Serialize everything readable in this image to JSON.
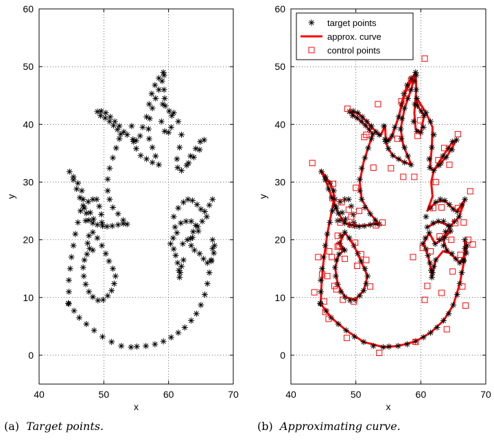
{
  "captions": [
    {
      "label": "(a)",
      "text": "Target points."
    },
    {
      "label": "(b)",
      "text": "Approximating curve."
    }
  ],
  "chart_data": [
    {
      "type": "scatter",
      "xlabel": "x",
      "ylabel": "y",
      "xlim": [
        40,
        70
      ],
      "ylim": [
        -5,
        60
      ],
      "xticks": [
        40,
        50,
        60,
        70
      ],
      "yticks": [
        0,
        10,
        20,
        30,
        40,
        50,
        60
      ],
      "grid": true,
      "series": [
        {
          "marker": "asterisk",
          "color": "#000000",
          "points": "target"
        }
      ]
    },
    {
      "type": "scatter",
      "xlabel": "x",
      "ylabel": "y",
      "xlim": [
        40,
        70
      ],
      "ylim": [
        -5,
        60
      ],
      "xticks": [
        40,
        50,
        60,
        70
      ],
      "yticks": [
        0,
        10,
        20,
        30,
        40,
        50,
        60
      ],
      "grid": true,
      "legend_position": "top",
      "series": [
        {
          "name": "target points",
          "marker": "asterisk",
          "color": "#000000",
          "points": "target"
        },
        {
          "name": "approx. curve",
          "style": "line",
          "color": "#ff0000",
          "points": "target"
        },
        {
          "name": "control points",
          "marker": "square",
          "color": "#ff0000",
          "points": "control"
        }
      ]
    }
  ],
  "target_points": [
    [
      44.5,
      9
    ],
    [
      44.6,
      11
    ],
    [
      44.6,
      13
    ],
    [
      44.8,
      15
    ],
    [
      45.0,
      17
    ],
    [
      45.3,
      19
    ],
    [
      45.6,
      21
    ],
    [
      46.0,
      23
    ],
    [
      46.4,
      25
    ],
    [
      46.8,
      27
    ],
    [
      46.6,
      28.5
    ],
    [
      46.0,
      29.8
    ],
    [
      45.3,
      30.9
    ],
    [
      44.7,
      31.8
    ],
    [
      45.3,
      30.4
    ],
    [
      45.8,
      28.8
    ],
    [
      46.3,
      27.3
    ],
    [
      46.8,
      25.9
    ],
    [
      47.3,
      24.6
    ],
    [
      47.7,
      23.4
    ],
    [
      48.3,
      22.9
    ],
    [
      49.0,
      22.6
    ],
    [
      49.8,
      22.4
    ],
    [
      50.5,
      22.3
    ],
    [
      51.3,
      22.4
    ],
    [
      52.2,
      22.6
    ],
    [
      53.0,
      22.8
    ],
    [
      53.6,
      22.7
    ],
    [
      53.0,
      23.4
    ],
    [
      52.2,
      24.5
    ],
    [
      51.4,
      25.6
    ],
    [
      50.9,
      27.0
    ],
    [
      50.6,
      28.5
    ],
    [
      50.6,
      30.5
    ],
    [
      50.9,
      32.4
    ],
    [
      51.4,
      34.2
    ],
    [
      51.9,
      35.9
    ],
    [
      52.4,
      37.5
    ],
    [
      52.6,
      38.3
    ],
    [
      52.1,
      39.1
    ],
    [
      51.5,
      39.8
    ],
    [
      50.9,
      40.5
    ],
    [
      50.2,
      41.1
    ],
    [
      49.5,
      41.5
    ],
    [
      49.0,
      42.2
    ],
    [
      49.6,
      42.3
    ],
    [
      50.3,
      42.0
    ],
    [
      51.0,
      41.3
    ],
    [
      51.7,
      40.5
    ],
    [
      52.4,
      39.7
    ],
    [
      53.1,
      38.7
    ],
    [
      53.6,
      38.2
    ],
    [
      54.3,
      39.7
    ],
    [
      54.5,
      37.4
    ],
    [
      55.0,
      37.2
    ],
    [
      55.6,
      38.0
    ],
    [
      56.0,
      39.5
    ],
    [
      56.6,
      41.3
    ],
    [
      57.0,
      43.5
    ],
    [
      57.4,
      45.3
    ],
    [
      57.9,
      46.8
    ],
    [
      58.5,
      48.0
    ],
    [
      59.2,
      49.0
    ],
    [
      59.0,
      47.5
    ],
    [
      58.5,
      46.0
    ],
    [
      58.0,
      44.5
    ],
    [
      57.5,
      42.8
    ],
    [
      57.1,
      41.0
    ],
    [
      56.9,
      39.2
    ],
    [
      57.0,
      37.5
    ],
    [
      57.5,
      36.0
    ],
    [
      58.0,
      34.5
    ],
    [
      58.5,
      33.0
    ],
    [
      57.5,
      33.4
    ],
    [
      56.6,
      34.0
    ],
    [
      55.7,
      34.6
    ],
    [
      55.0,
      35.8
    ],
    [
      54.6,
      37.0
    ],
    [
      59.3,
      48.5
    ],
    [
      59.3,
      46.0
    ],
    [
      59.1,
      43.5
    ],
    [
      58.9,
      40.5
    ],
    [
      59.4,
      38.8
    ],
    [
      60.0,
      38.6
    ],
    [
      60.4,
      39.5
    ],
    [
      60.5,
      41.5
    ],
    [
      60.1,
      42.3
    ],
    [
      59.5,
      43.2
    ],
    [
      59.4,
      44.5
    ],
    [
      60.8,
      42.0
    ],
    [
      61.5,
      40.5
    ],
    [
      62.0,
      38.2
    ],
    [
      61.7,
      36.0
    ],
    [
      61.3,
      34.0
    ],
    [
      61.4,
      32.5
    ],
    [
      62.0,
      32.0
    ],
    [
      62.8,
      32.9
    ],
    [
      63.4,
      34.5
    ],
    [
      64.2,
      35.8
    ],
    [
      64.9,
      37.0
    ],
    [
      65.5,
      37.3
    ],
    [
      64.8,
      35.6
    ],
    [
      63.9,
      34.3
    ],
    [
      63.1,
      33.3
    ],
    [
      60.8,
      24.0
    ],
    [
      61.5,
      25.5
    ],
    [
      62.3,
      26.5
    ],
    [
      63.0,
      27.0
    ],
    [
      63.7,
      26.8
    ],
    [
      64.4,
      26.1
    ],
    [
      65.0,
      25.3
    ],
    [
      65.6,
      24.9
    ],
    [
      66.3,
      26.0
    ],
    [
      66.8,
      27.0
    ],
    [
      65.9,
      24.0
    ],
    [
      65.2,
      23.2
    ],
    [
      64.5,
      22.3
    ],
    [
      63.8,
      21.4
    ],
    [
      63.4,
      20.2
    ],
    [
      63.5,
      19.0
    ],
    [
      64.0,
      18.2
    ],
    [
      64.8,
      17.6
    ],
    [
      65.4,
      16.7
    ],
    [
      66.0,
      16.0
    ],
    [
      66.6,
      16.5
    ],
    [
      67.0,
      17.7
    ],
    [
      67.1,
      19.0
    ],
    [
      66.8,
      20.0
    ],
    [
      61.0,
      22.2
    ],
    [
      61.9,
      22.9
    ],
    [
      62.7,
      23.2
    ],
    [
      63.5,
      23.2
    ],
    [
      64.2,
      22.5
    ],
    [
      64.6,
      21.5
    ],
    [
      62.2,
      19.3
    ],
    [
      62.9,
      20.0
    ],
    [
      63.7,
      20.4
    ],
    [
      61.3,
      21.2
    ],
    [
      60.7,
      20.3
    ],
    [
      60.3,
      19.3
    ],
    [
      60.8,
      18.4
    ],
    [
      61.1,
      17.3
    ],
    [
      61.4,
      16.0
    ],
    [
      61.6,
      14.7
    ],
    [
      61.7,
      13.5
    ],
    [
      61.8,
      14.3
    ],
    [
      62.0,
      15.4
    ],
    [
      62.3,
      16.5
    ],
    [
      66.8,
      18.5
    ],
    [
      66.6,
      16.3
    ],
    [
      66.3,
      14.3
    ],
    [
      66.0,
      12.4
    ],
    [
      65.6,
      10.5
    ],
    [
      65.0,
      8.7
    ],
    [
      64.3,
      7.2
    ],
    [
      63.5,
      6.0
    ],
    [
      62.5,
      4.8
    ],
    [
      61.5,
      3.9
    ],
    [
      60.4,
      3.1
    ],
    [
      59.2,
      2.4
    ],
    [
      57.9,
      1.9
    ],
    [
      56.5,
      1.6
    ],
    [
      55.1,
      1.5
    ],
    [
      54.2,
      1.4
    ],
    [
      52.7,
      1.6
    ],
    [
      51.2,
      2.3
    ],
    [
      49.8,
      3.2
    ],
    [
      48.5,
      4.3
    ],
    [
      47.3,
      5.4
    ],
    [
      46.2,
      6.5
    ],
    [
      45.4,
      7.7
    ],
    [
      44.6,
      8.9
    ],
    [
      47.4,
      17.5
    ],
    [
      47.0,
      16.5
    ],
    [
      46.8,
      15.2
    ],
    [
      46.9,
      13.7
    ],
    [
      47.2,
      12.3
    ],
    [
      47.7,
      11.0
    ],
    [
      48.3,
      10.1
    ],
    [
      49.1,
      9.5
    ],
    [
      49.9,
      9.6
    ],
    [
      50.6,
      10.3
    ],
    [
      51.2,
      11.2
    ],
    [
      51.6,
      12.4
    ],
    [
      51.8,
      13.7
    ],
    [
      51.4,
      15.0
    ],
    [
      50.8,
      16.3
    ],
    [
      50.3,
      17.6
    ],
    [
      49.7,
      19.0
    ],
    [
      49.0,
      20.3
    ],
    [
      48.3,
      21.3
    ],
    [
      47.7,
      20.7
    ],
    [
      47.5,
      19.4
    ],
    [
      47.8,
      18.5
    ],
    [
      48.3,
      18.2
    ],
    [
      47.0,
      25.5
    ],
    [
      47.6,
      26.6
    ],
    [
      48.3,
      27.0
    ],
    [
      48.9,
      27.0
    ],
    [
      49.3,
      25.8
    ],
    [
      49.6,
      24.4
    ],
    [
      49.7,
      23.0
    ],
    [
      47.2,
      23.3
    ],
    [
      47.9,
      24.7
    ],
    [
      48.4,
      23.6
    ]
  ],
  "curve_path": [
    [
      44.6,
      9
    ],
    [
      44.7,
      12
    ],
    [
      45.0,
      16
    ],
    [
      45.6,
      21
    ],
    [
      46.3,
      25
    ],
    [
      46.7,
      27.5
    ],
    [
      46.2,
      29.5
    ],
    [
      45.3,
      31
    ],
    [
      44.6,
      32
    ],
    [
      45.4,
      30.2
    ],
    [
      46.3,
      27.3
    ],
    [
      47.3,
      24.6
    ],
    [
      48.3,
      22.9
    ],
    [
      49.8,
      22.4
    ],
    [
      51.3,
      22.4
    ],
    [
      53.0,
      22.8
    ],
    [
      53.6,
      22.7
    ],
    [
      52.2,
      24.5
    ],
    [
      50.9,
      27.0
    ],
    [
      50.6,
      30.0
    ],
    [
      51.2,
      33.5
    ],
    [
      52.0,
      36.3
    ],
    [
      52.6,
      38.3
    ],
    [
      51.5,
      39.8
    ],
    [
      50.2,
      41.1
    ],
    [
      49.0,
      42.2
    ],
    [
      50.3,
      42.0
    ],
    [
      51.7,
      40.5
    ],
    [
      53.1,
      38.7
    ],
    [
      53.8,
      38.0
    ],
    [
      54.5,
      39.8
    ],
    [
      54.6,
      37.4
    ],
    [
      55.3,
      37.3
    ],
    [
      56.0,
      39.5
    ],
    [
      56.6,
      41.3
    ],
    [
      57.2,
      44.3
    ],
    [
      57.9,
      46.8
    ],
    [
      59.2,
      49.0
    ],
    [
      58.5,
      46.0
    ],
    [
      57.5,
      42.8
    ],
    [
      56.9,
      39.2
    ],
    [
      57.3,
      36.3
    ],
    [
      58.0,
      34.5
    ],
    [
      58.5,
      33.0
    ],
    [
      57.0,
      33.7
    ],
    [
      55.7,
      34.6
    ],
    [
      55.0,
      35.8
    ],
    [
      54.6,
      37.0
    ],
    [
      55.6,
      38.0
    ],
    [
      56.6,
      41.3
    ],
    [
      57.6,
      45.5
    ],
    [
      59.2,
      49.0
    ],
    [
      59.3,
      46.0
    ],
    [
      59.0,
      42.0
    ],
    [
      59.2,
      39.2
    ],
    [
      60.0,
      38.6
    ],
    [
      60.5,
      41.5
    ],
    [
      59.5,
      43.2
    ],
    [
      59.4,
      44.5
    ],
    [
      60.8,
      42.0
    ],
    [
      61.8,
      39.5
    ],
    [
      61.7,
      36.0
    ],
    [
      61.4,
      32.5
    ],
    [
      62.0,
      32.0
    ],
    [
      63.4,
      34.5
    ],
    [
      64.9,
      37.0
    ],
    [
      65.5,
      37.3
    ],
    [
      64.0,
      34.4
    ],
    [
      62.8,
      33.0
    ],
    [
      62.0,
      32.0
    ],
    [
      61.6,
      30.0
    ],
    [
      61.8,
      27.5
    ],
    [
      61.0,
      25.0
    ],
    [
      62.3,
      26.5
    ],
    [
      63.7,
      26.8
    ],
    [
      65.0,
      25.3
    ],
    [
      65.6,
      24.9
    ],
    [
      66.8,
      27.0
    ],
    [
      65.9,
      24.0
    ],
    [
      64.5,
      22.3
    ],
    [
      63.4,
      20.2
    ],
    [
      64.0,
      18.2
    ],
    [
      65.4,
      16.7
    ],
    [
      66.0,
      16.0
    ],
    [
      67.0,
      17.7
    ],
    [
      67.1,
      19.0
    ],
    [
      66.8,
      20.0
    ],
    [
      66.7,
      16.5
    ],
    [
      66.0,
      12.4
    ],
    [
      65.0,
      8.7
    ],
    [
      63.5,
      6.0
    ],
    [
      61.5,
      3.9
    ],
    [
      59.2,
      2.4
    ],
    [
      56.5,
      1.6
    ],
    [
      54.2,
      1.4
    ],
    [
      51.2,
      2.3
    ],
    [
      48.5,
      4.3
    ],
    [
      46.2,
      6.5
    ],
    [
      44.6,
      8.9
    ]
  ],
  "curve_path_2": [
    [
      61.0,
      22.2
    ],
    [
      62.7,
      23.2
    ],
    [
      64.2,
      22.5
    ],
    [
      64.6,
      21.5
    ],
    [
      63.7,
      20.4
    ],
    [
      62.2,
      19.3
    ],
    [
      61.3,
      21.2
    ],
    [
      60.4,
      19.3
    ],
    [
      61.1,
      17.3
    ],
    [
      61.6,
      14.7
    ],
    [
      61.7,
      13.5
    ],
    [
      62.3,
      16.5
    ],
    [
      63.4,
      18.0
    ],
    [
      64.8,
      17.6
    ]
  ],
  "curve_path_3": [
    [
      47.4,
      17.5
    ],
    [
      46.8,
      15.2
    ],
    [
      47.2,
      12.3
    ],
    [
      48.3,
      10.1
    ],
    [
      49.9,
      9.6
    ],
    [
      51.2,
      11.2
    ],
    [
      51.8,
      13.7
    ],
    [
      50.8,
      16.3
    ],
    [
      49.7,
      19.0
    ],
    [
      48.3,
      21.3
    ],
    [
      47.5,
      19.4
    ],
    [
      48.3,
      18.2
    ],
    [
      47.4,
      17.5
    ]
  ],
  "control_points": [
    [
      43.3,
      33.3
    ],
    [
      44.2,
      17.0
    ],
    [
      43.6,
      10.9
    ],
    [
      44.8,
      14.0
    ],
    [
      45.1,
      9.3
    ],
    [
      45.3,
      7.5
    ],
    [
      45.6,
      13.7
    ],
    [
      45.8,
      6.3
    ],
    [
      45.9,
      18.0
    ],
    [
      46.3,
      17.0
    ],
    [
      46.4,
      27.2
    ],
    [
      46.5,
      29.7
    ],
    [
      46.7,
      12.0
    ],
    [
      47.0,
      11.4
    ],
    [
      47.2,
      20.7
    ],
    [
      47.4,
      19.0
    ],
    [
      47.6,
      23.0
    ],
    [
      47.8,
      26.5
    ],
    [
      48.0,
      9.6
    ],
    [
      48.3,
      16.7
    ],
    [
      48.6,
      3.0
    ],
    [
      48.7,
      42.7
    ],
    [
      48.9,
      25.2
    ],
    [
      49.3,
      24.0
    ],
    [
      49.7,
      9.3
    ],
    [
      50.0,
      29.0
    ],
    [
      50.2,
      15.5
    ],
    [
      50.5,
      25.0
    ],
    [
      50.8,
      17.5
    ],
    [
      51.3,
      37.8
    ],
    [
      51.6,
      38.2
    ],
    [
      52.2,
      11.9
    ],
    [
      52.7,
      32.5
    ],
    [
      53.1,
      22.5
    ],
    [
      53.4,
      43.5
    ],
    [
      53.6,
      0.4
    ],
    [
      54.1,
      23.0
    ],
    [
      55.4,
      32.4
    ],
    [
      56.4,
      37.5
    ],
    [
      57.0,
      44.0
    ],
    [
      57.3,
      30.9
    ],
    [
      57.8,
      45.4
    ],
    [
      58.5,
      47.6
    ],
    [
      58.8,
      17.0
    ],
    [
      59.0,
      30.9
    ],
    [
      59.2,
      2.3
    ],
    [
      59.5,
      38.0
    ],
    [
      59.9,
      40.7
    ],
    [
      60.3,
      18.6
    ],
    [
      60.6,
      51.4
    ],
    [
      61.0,
      12.0
    ],
    [
      61.5,
      18.0
    ],
    [
      61.9,
      25.5
    ],
    [
      62.3,
      30.0
    ],
    [
      62.7,
      33.8
    ],
    [
      62.9,
      20.6
    ],
    [
      63.2,
      10.8
    ],
    [
      63.6,
      35.9
    ],
    [
      64.0,
      4.5
    ],
    [
      64.4,
      33.0
    ],
    [
      64.7,
      20.0
    ],
    [
      64.9,
      14.5
    ],
    [
      65.3,
      22.9
    ],
    [
      65.7,
      38.3
    ],
    [
      66.1,
      17.4
    ],
    [
      66.4,
      11.9
    ],
    [
      66.6,
      23.0
    ],
    [
      66.9,
      8.6
    ],
    [
      67.3,
      20.0
    ],
    [
      67.6,
      28.4
    ],
    [
      68.0,
      19.2
    ],
    [
      65.7,
      25.5
    ],
    [
      63.2,
      25.6
    ],
    [
      60.6,
      9.6
    ],
    [
      49.9,
      19.5
    ],
    [
      51.6,
      16.5
    ],
    [
      47.2,
      18.8
    ],
    [
      49.3,
      22.6
    ]
  ]
}
